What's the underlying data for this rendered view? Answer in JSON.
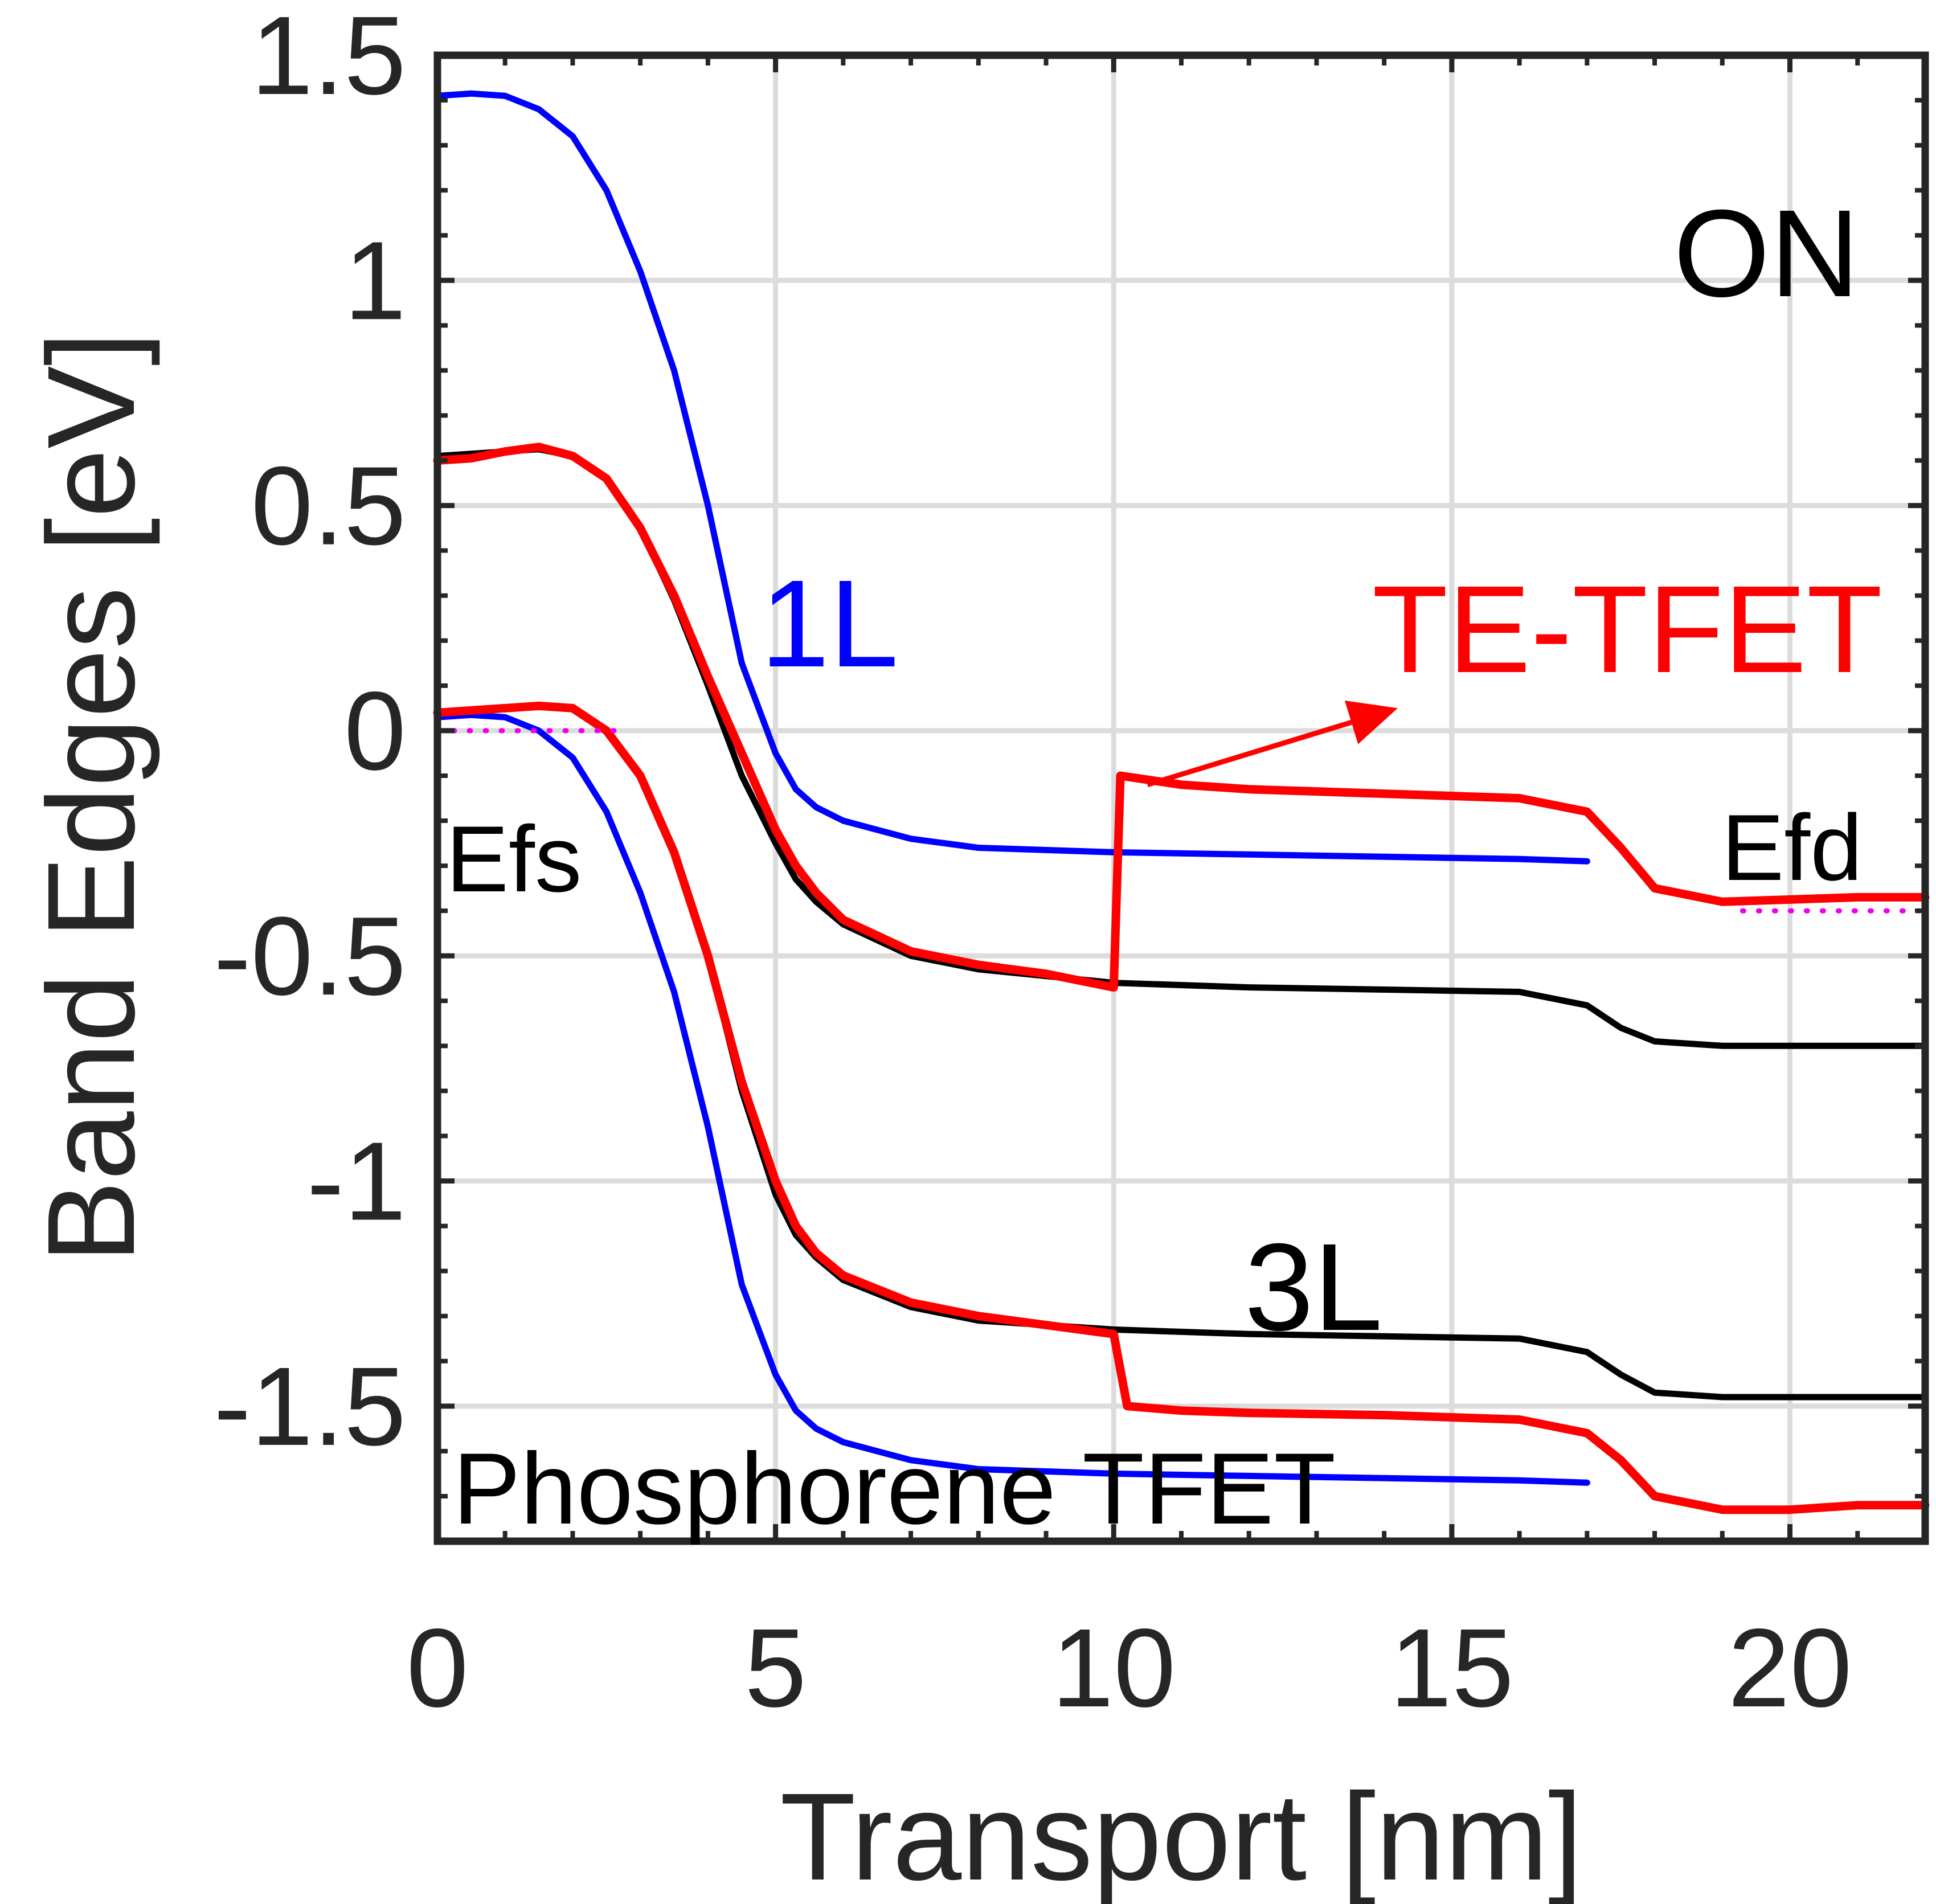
{
  "chart_data": {
    "type": "line",
    "title": "",
    "xlabel": "Transport [nm]",
    "ylabel": "Band Edges [eV]",
    "xlim": [
      0,
      22
    ],
    "ylim": [
      -1.8,
      1.5
    ],
    "xticks": [
      0,
      5,
      10,
      15,
      20
    ],
    "xtick_labels": [
      "0",
      "5",
      "10",
      "15",
      "20"
    ],
    "yticks": [
      1.5,
      1,
      0.5,
      0,
      -0.5,
      -1,
      -1.5
    ],
    "ytick_labels": [
      "1.5",
      "1",
      "0.5",
      "0",
      "-0.5",
      "-1",
      "-1.5"
    ],
    "grid": true,
    "colors": {
      "blue": "#0000ff",
      "red": "#ff0000",
      "black": "#000000",
      "magenta": "#ee00ee",
      "grid": "#dcdcdc",
      "axis": "#262626"
    },
    "series": [
      {
        "name": "1L Phosphorene TFET conduction band",
        "color": "#0000ff",
        "x": [
          0,
          0.5,
          1,
          1.5,
          2,
          2.5,
          3,
          3.5,
          4,
          4.5,
          5,
          5.3,
          5.6,
          6,
          7,
          8,
          10,
          12,
          14,
          16,
          17
        ],
        "y": [
          1.41,
          1.415,
          1.41,
          1.38,
          1.32,
          1.2,
          1.02,
          0.8,
          0.5,
          0.15,
          -0.05,
          -0.13,
          -0.17,
          -0.2,
          -0.24,
          -0.26,
          -0.27,
          -0.275,
          -0.28,
          -0.285,
          -0.29
        ]
      },
      {
        "name": "1L Phosphorene TFET valence band",
        "color": "#0000ff",
        "x": [
          0,
          0.5,
          1,
          1.5,
          2,
          2.5,
          3,
          3.5,
          4,
          4.5,
          5,
          5.3,
          5.6,
          6,
          7,
          8,
          10,
          12,
          14,
          16,
          17
        ],
        "y": [
          0.03,
          0.035,
          0.03,
          0.0,
          -0.06,
          -0.18,
          -0.36,
          -0.58,
          -0.88,
          -1.23,
          -1.43,
          -1.51,
          -1.55,
          -1.58,
          -1.62,
          -1.64,
          -1.65,
          -1.655,
          -1.66,
          -1.665,
          -1.67
        ]
      },
      {
        "name": "3L Phosphorene TFET conduction band",
        "color": "#000000",
        "x": [
          0,
          0.5,
          1,
          1.5,
          2,
          2.5,
          3,
          3.5,
          4,
          4.5,
          5,
          5.3,
          5.6,
          6,
          7,
          8,
          10,
          12,
          14,
          16,
          17,
          17.5,
          18,
          19,
          20,
          21,
          22
        ],
        "y": [
          0.61,
          0.615,
          0.62,
          0.625,
          0.61,
          0.56,
          0.45,
          0.29,
          0.1,
          -0.1,
          -0.25,
          -0.33,
          -0.38,
          -0.43,
          -0.5,
          -0.53,
          -0.56,
          -0.57,
          -0.575,
          -0.58,
          -0.61,
          -0.66,
          -0.69,
          -0.7,
          -0.7,
          -0.7,
          -0.7
        ]
      },
      {
        "name": "3L Phosphorene TFET valence band",
        "color": "#000000",
        "x": [
          0,
          0.5,
          1,
          1.5,
          2,
          2.5,
          3,
          3.5,
          4,
          4.5,
          5,
          5.3,
          5.6,
          6,
          7,
          8,
          10,
          12,
          14,
          16,
          17,
          17.5,
          18,
          19,
          20,
          21,
          22
        ],
        "y": [
          0.04,
          0.045,
          0.05,
          0.055,
          0.05,
          0.0,
          -0.1,
          -0.27,
          -0.5,
          -0.8,
          -1.03,
          -1.12,
          -1.17,
          -1.22,
          -1.28,
          -1.31,
          -1.33,
          -1.34,
          -1.345,
          -1.35,
          -1.38,
          -1.43,
          -1.47,
          -1.48,
          -1.48,
          -1.48,
          -1.48
        ]
      },
      {
        "name": "TE-TFET conduction band",
        "color": "#ff0000",
        "x": [
          0,
          0.5,
          1,
          1.5,
          2,
          2.5,
          3,
          3.5,
          4,
          4.5,
          5,
          5.3,
          5.6,
          6,
          7,
          8,
          9,
          10,
          10,
          10.1,
          11,
          12,
          14,
          16,
          17,
          17.5,
          18,
          19,
          20,
          21,
          22
        ],
        "y": [
          0.6,
          0.605,
          0.62,
          0.63,
          0.61,
          0.56,
          0.45,
          0.3,
          0.12,
          -0.05,
          -0.22,
          -0.3,
          -0.36,
          -0.42,
          -0.49,
          -0.52,
          -0.54,
          -0.57,
          -0.57,
          -0.1,
          -0.12,
          -0.13,
          -0.14,
          -0.15,
          -0.18,
          -0.26,
          -0.35,
          -0.38,
          -0.375,
          -0.37,
          -0.37
        ]
      },
      {
        "name": "TE-TFET valence band",
        "color": "#ff0000",
        "x": [
          0,
          0.5,
          1,
          1.5,
          2,
          2.5,
          3,
          3.5,
          4,
          4.5,
          5,
          5.3,
          5.6,
          6,
          7,
          8,
          9,
          10,
          10,
          10.2,
          11,
          12,
          14,
          16,
          17,
          17.5,
          18,
          19,
          20,
          21,
          22
        ],
        "y": [
          0.04,
          0.045,
          0.05,
          0.055,
          0.05,
          0.0,
          -0.1,
          -0.27,
          -0.5,
          -0.78,
          -1.0,
          -1.1,
          -1.16,
          -1.21,
          -1.27,
          -1.3,
          -1.32,
          -1.34,
          -1.34,
          -1.5,
          -1.51,
          -1.515,
          -1.52,
          -1.53,
          -1.56,
          -1.62,
          -1.7,
          -1.73,
          -1.73,
          -1.72,
          -1.72
        ]
      },
      {
        "name": "Efs",
        "color": "#ee00ee",
        "dotted": true,
        "x": [
          0,
          2.8
        ],
        "y": [
          0.0,
          0.0
        ]
      },
      {
        "name": "Efd",
        "color": "#ee00ee",
        "dotted": true,
        "x": [
          19.3,
          22
        ],
        "y": [
          -0.4,
          -0.4
        ]
      }
    ],
    "annotations": {
      "on_label": "ON",
      "one_layer_label": "1L",
      "three_layer_label": "3L",
      "te_tfet_label": "TE-TFET",
      "efs_label": "Efs",
      "efd_label": "Efd",
      "phosphorene_label": "Phosphorene TFET"
    },
    "arrow": {
      "from": [
        10.5,
        -0.12
      ],
      "to": [
        14.2,
        0.05
      ]
    }
  }
}
